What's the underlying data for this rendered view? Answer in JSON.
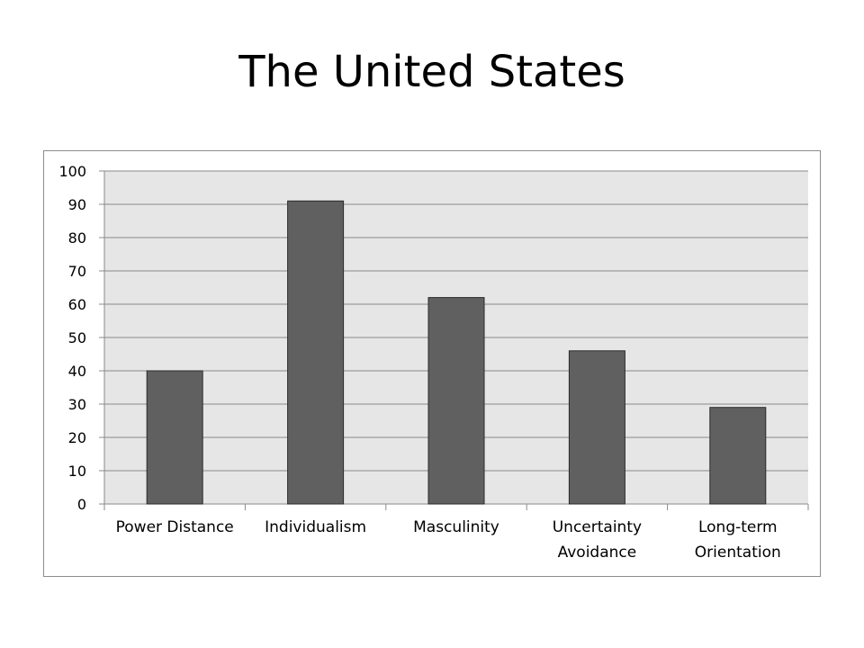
{
  "slide": {
    "title": "The United States"
  },
  "chart_data": {
    "type": "bar",
    "title": "",
    "xlabel": "",
    "ylabel": "",
    "categories": [
      [
        "Power Distance"
      ],
      [
        "Individualism"
      ],
      [
        "Masculinity"
      ],
      [
        "Uncertainty",
        "Avoidance"
      ],
      [
        "Long-term",
        "Orientation"
      ]
    ],
    "values": [
      40,
      91,
      62,
      46,
      29
    ],
    "ylim": [
      0,
      100
    ],
    "yticks": [
      0,
      10,
      20,
      30,
      40,
      50,
      60,
      70,
      80,
      90,
      100
    ],
    "grid": true,
    "legend": "none",
    "colors": {
      "bar": "#606060",
      "bar_edge": "#2b2b2b",
      "plot_bg": "#e6e6e6",
      "grid": "#8a8a8a",
      "axis": "#8a8a8a"
    }
  }
}
